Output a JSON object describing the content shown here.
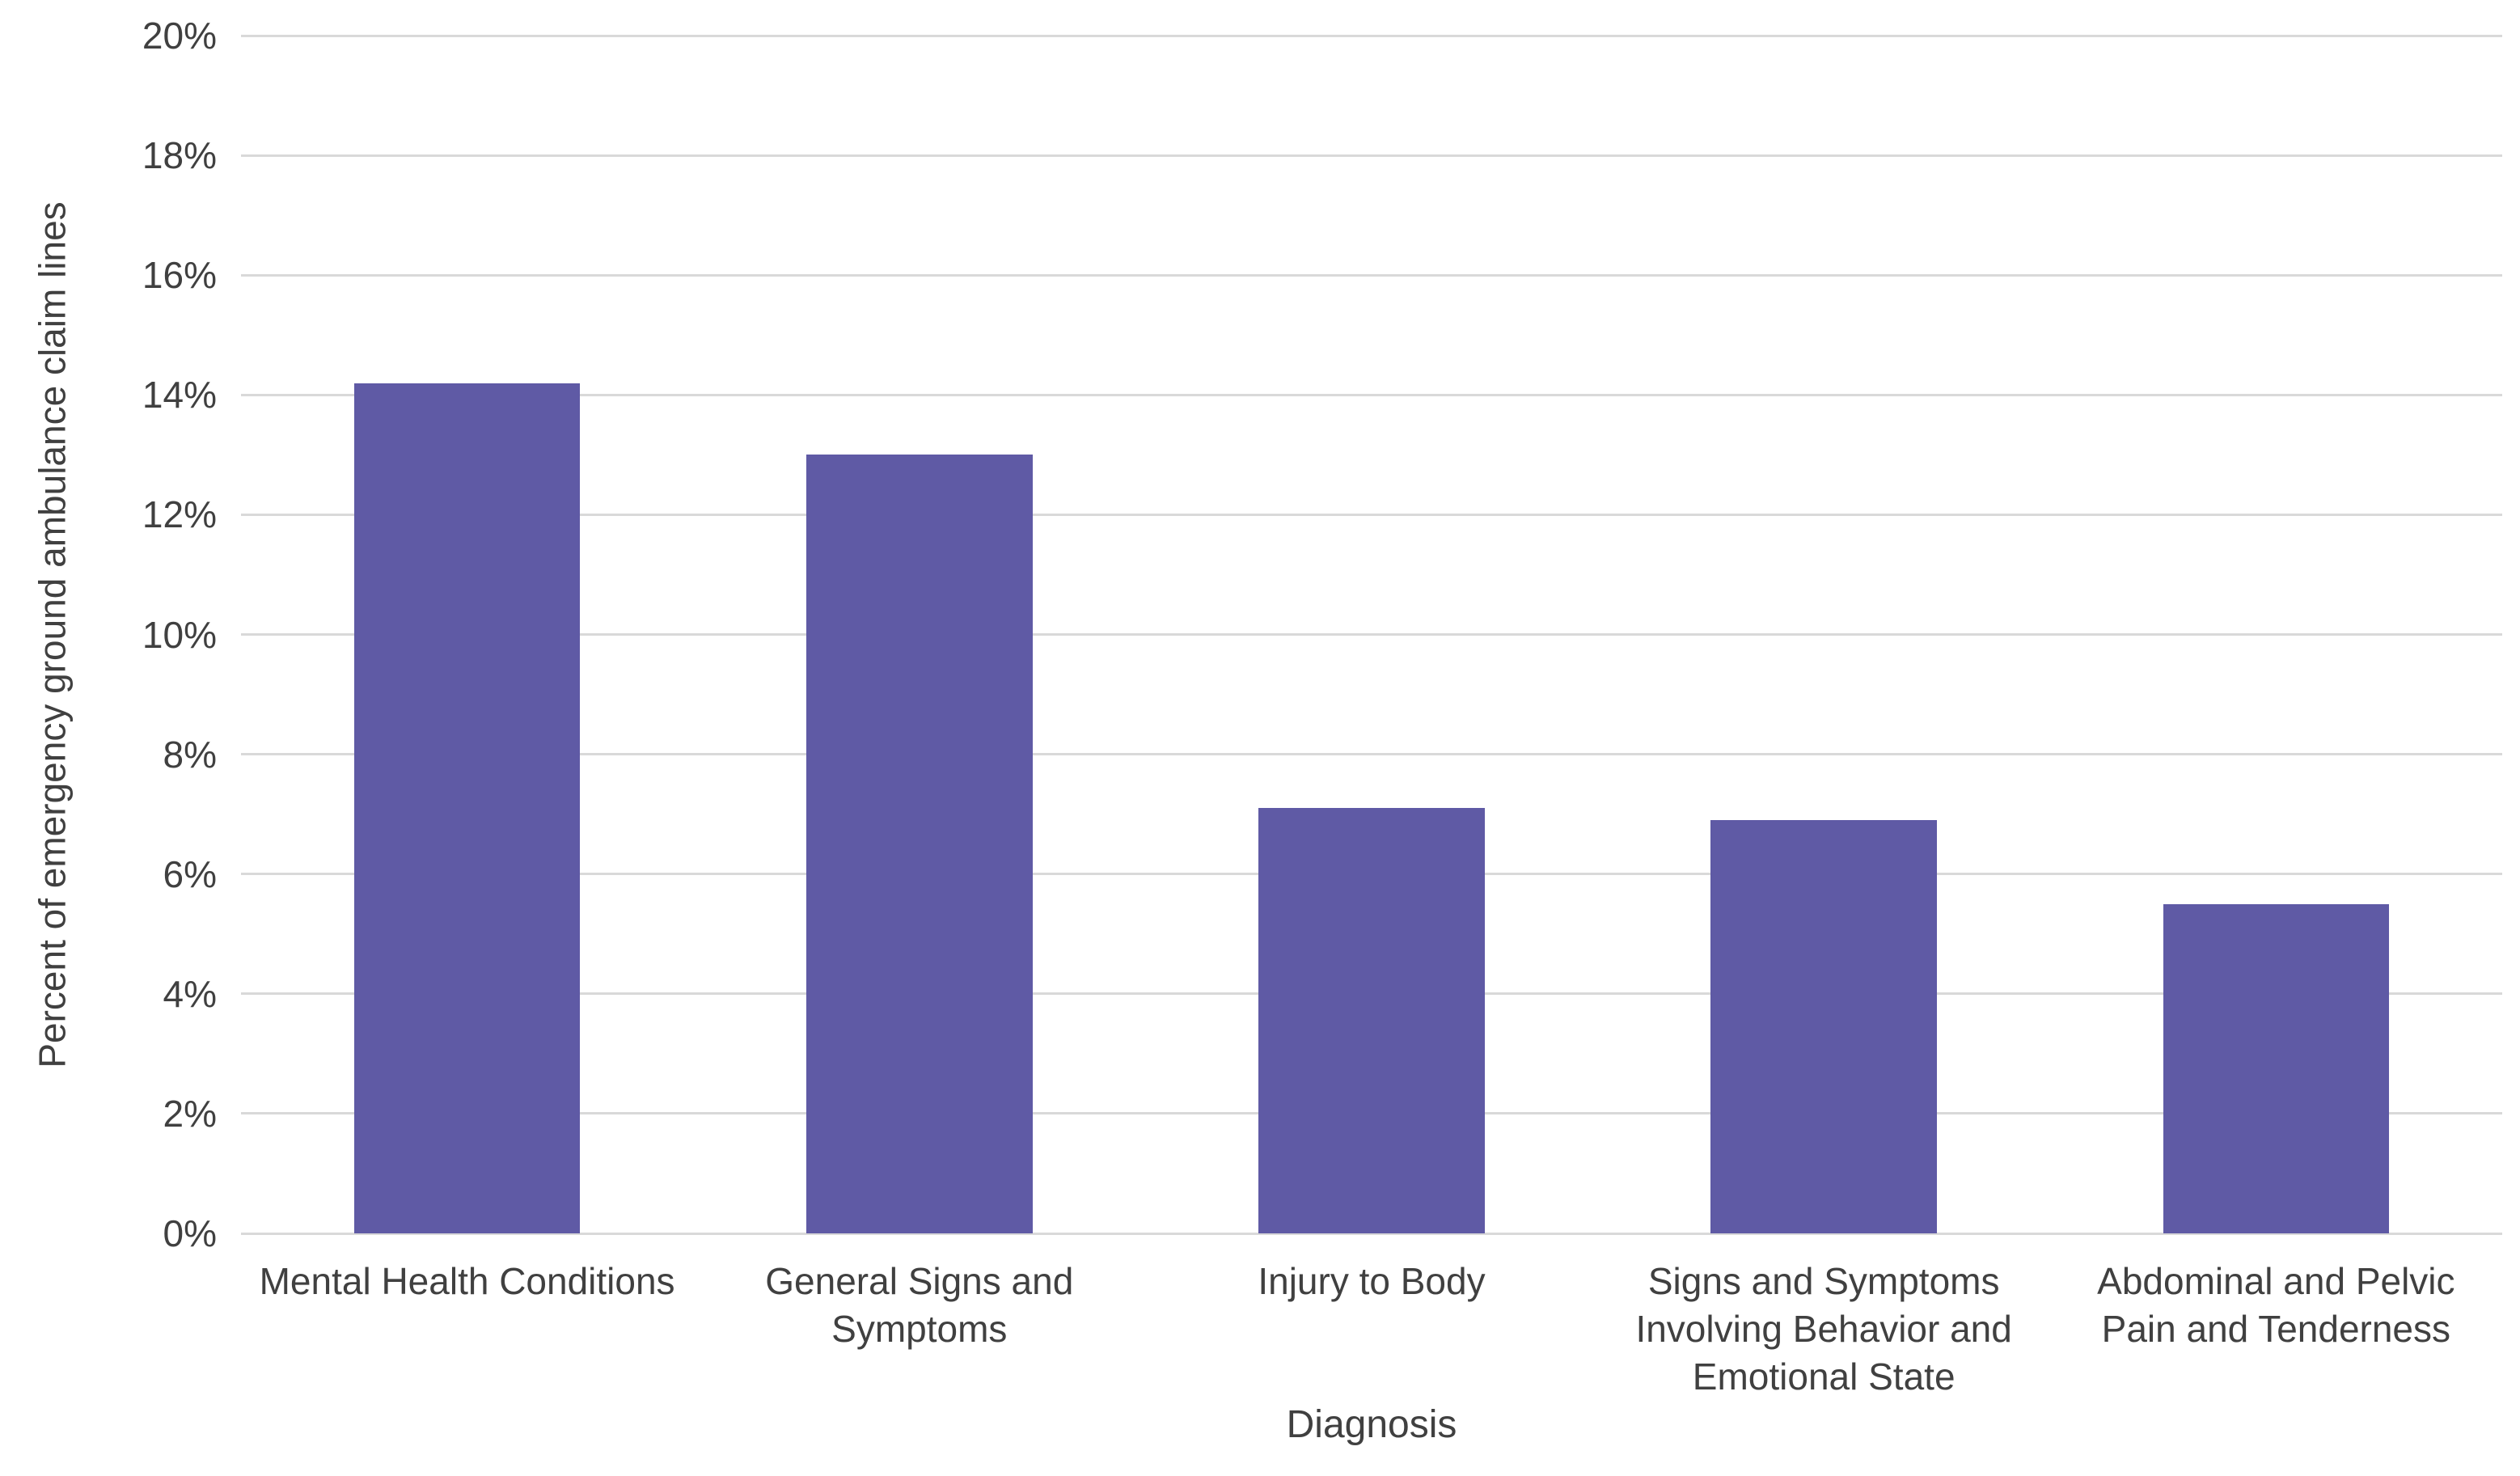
{
  "chart_data": {
    "type": "bar",
    "title": "",
    "xlabel": "Diagnosis",
    "ylabel": "Percent of emergency ground ambulance claim lines",
    "categories": [
      "Mental Health Conditions",
      "General Signs and Symptoms",
      "Injury to Body",
      "Signs and Symptoms Involving Behavior and Emotional State",
      "Abdominal and Pelvic Pain and Tenderness"
    ],
    "values": [
      14.2,
      13.0,
      7.1,
      6.9,
      5.5
    ],
    "ylim": [
      0,
      20
    ],
    "ytick_step": 2,
    "ytick_labels": [
      "0%",
      "2%",
      "4%",
      "6%",
      "8%",
      "10%",
      "12%",
      "14%",
      "16%",
      "18%",
      "20%"
    ],
    "grid": true,
    "legend": "none",
    "bar_color": "#5f5aa5",
    "gridline_color": "#d9d9d9",
    "text_color": "#404040",
    "background_color": "#ffffff"
  }
}
